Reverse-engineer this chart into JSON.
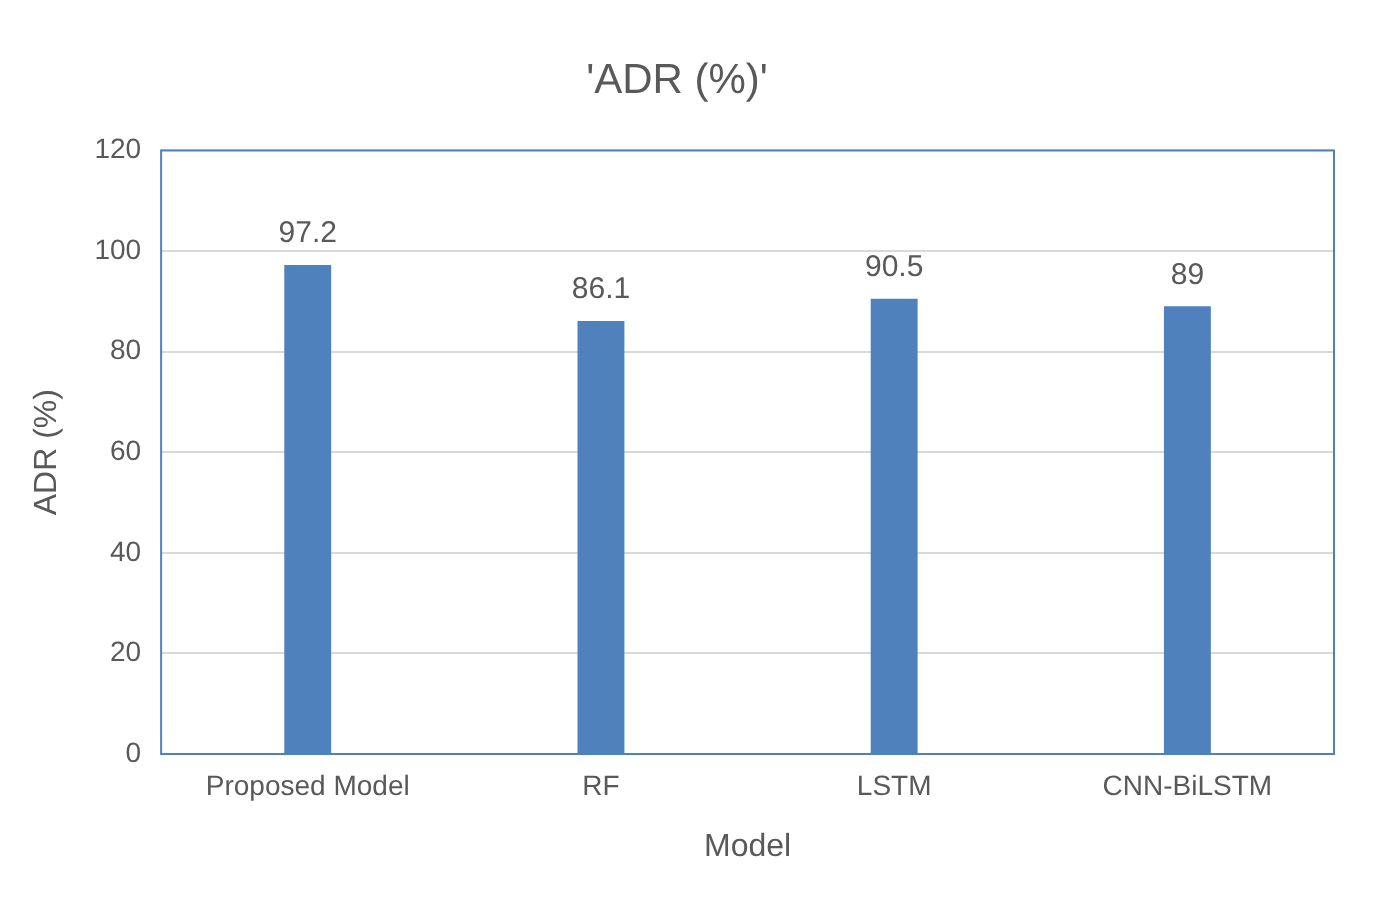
{
  "chart_data": {
    "type": "bar",
    "title": "'ADR (%)'",
    "xlabel": "Model",
    "ylabel": "ADR (%)",
    "categories": [
      "Proposed Model",
      "RF",
      "LSTM",
      "CNN-BiLSTM"
    ],
    "values": [
      97.2,
      86.1,
      90.5,
      89
    ],
    "color": "#4f81bd",
    "ylim": [
      0,
      120
    ],
    "yticks": [
      0,
      20,
      40,
      60,
      80,
      100,
      120
    ],
    "grid": "y",
    "data_labels": true
  }
}
